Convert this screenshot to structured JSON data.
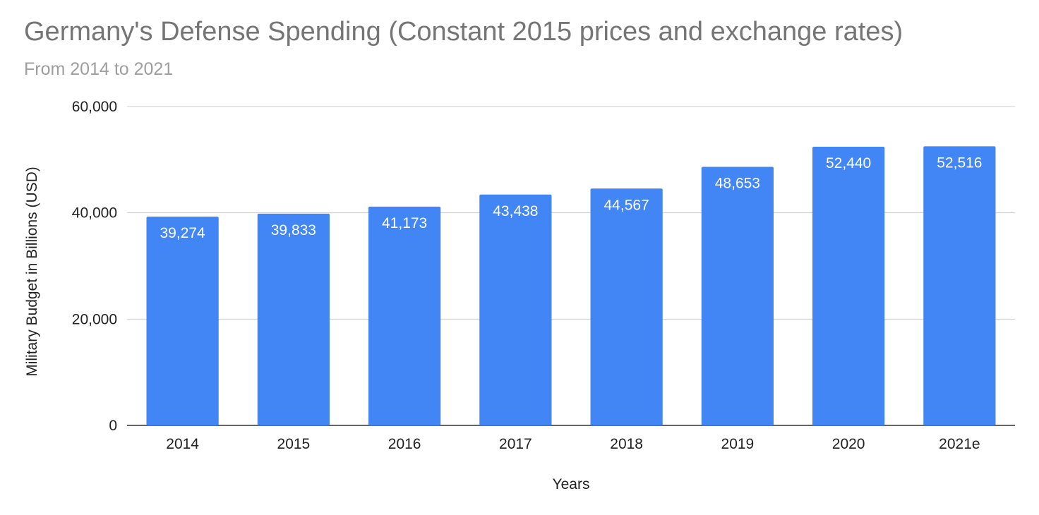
{
  "chart_data": {
    "type": "bar",
    "title": "Germany's Defense Spending (Constant 2015 prices and exchange rates)",
    "subtitle": "From 2014 to 2021",
    "xlabel": "Years",
    "ylabel": "Military Budget in Billions (USD)",
    "categories": [
      "2014",
      "2015",
      "2016",
      "2017",
      "2018",
      "2019",
      "2020",
      "2021e"
    ],
    "values": [
      39274,
      39833,
      41173,
      43438,
      44567,
      48653,
      52440,
      52516
    ],
    "value_labels": [
      "39,274",
      "39,833",
      "41,173",
      "43,438",
      "44,567",
      "48,653",
      "52,440",
      "52,516"
    ],
    "ylim": [
      0,
      60000
    ],
    "yticks": [
      0,
      20000,
      40000,
      60000
    ],
    "ytick_labels": [
      "0",
      "20,000",
      "40,000",
      "60,000"
    ],
    "grid": true,
    "legend": "none",
    "bar_color": "#4285f4"
  }
}
